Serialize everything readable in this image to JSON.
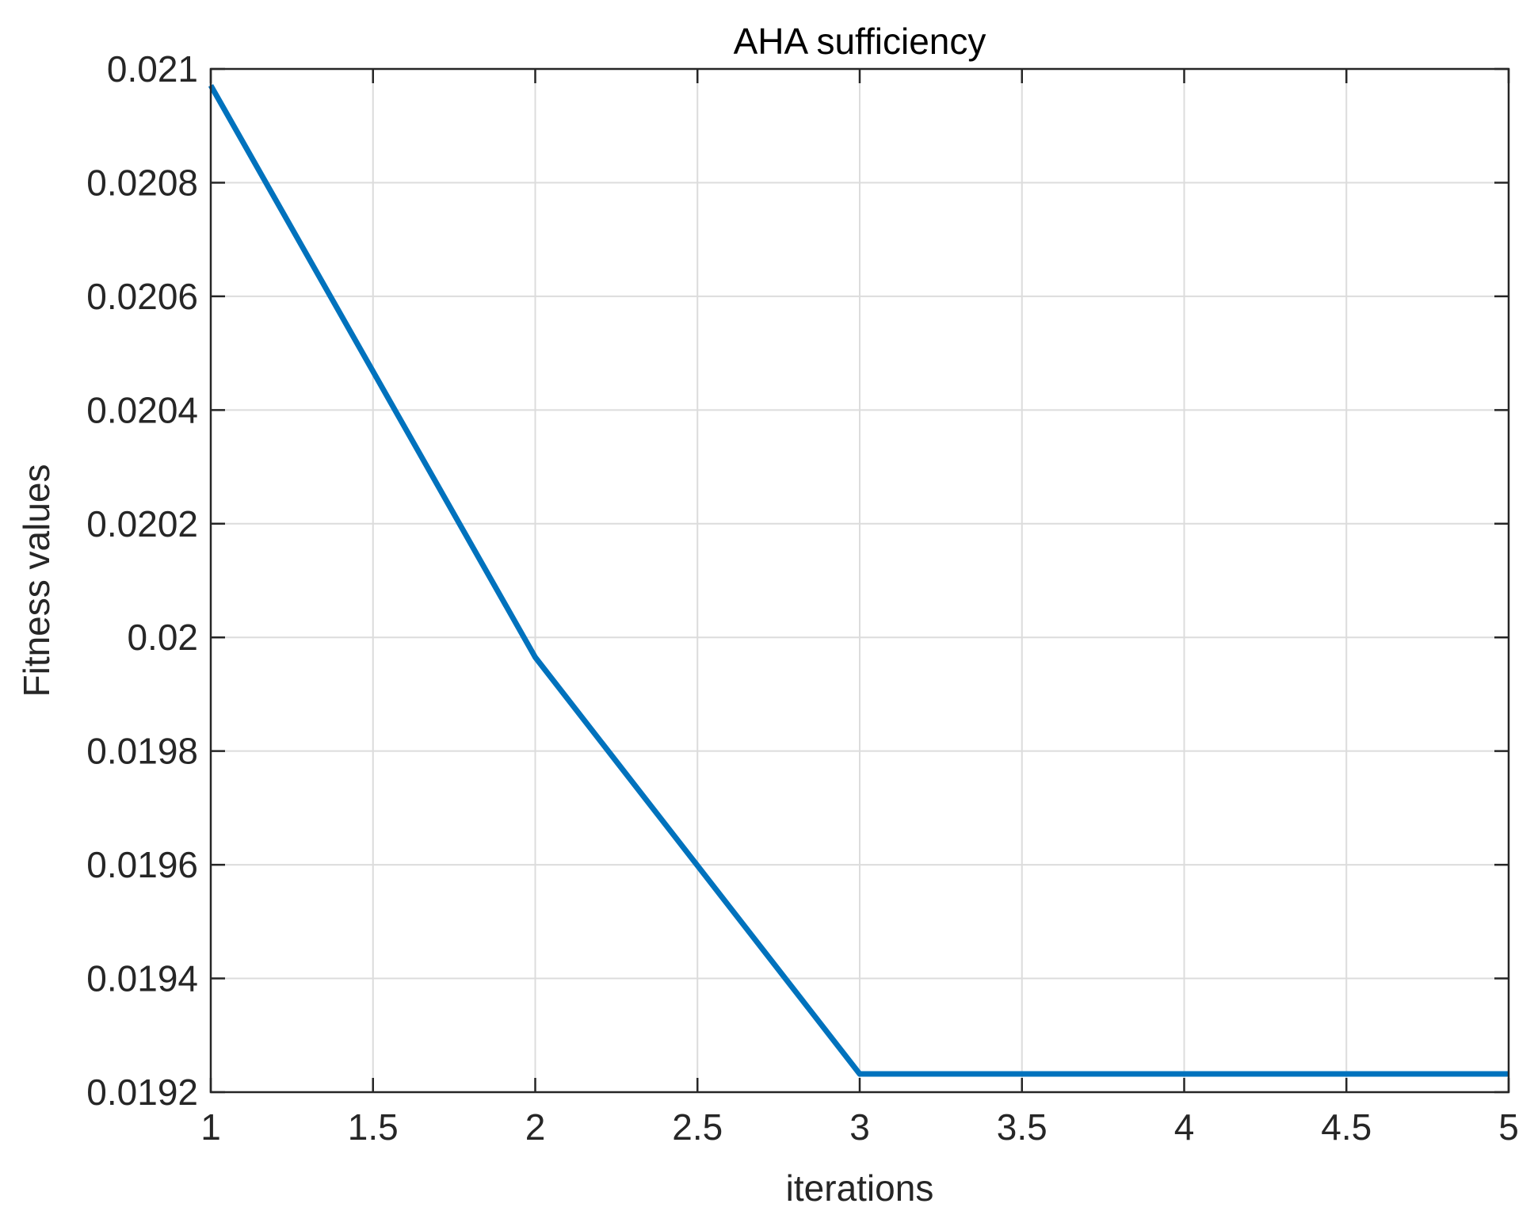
{
  "chart_data": {
    "type": "line",
    "title": "AHA sufficiency",
    "xlabel": "iterations",
    "ylabel": "Fitness values",
    "xlim": [
      1,
      5
    ],
    "ylim": [
      0.0192,
      0.021
    ],
    "xticks": [
      1,
      1.5,
      2,
      2.5,
      3,
      3.5,
      4,
      4.5,
      5
    ],
    "xtick_labels": [
      "1",
      "1.5",
      "2",
      "2.5",
      "3",
      "3.5",
      "4",
      "4.5",
      "5"
    ],
    "yticks": [
      0.0192,
      0.0194,
      0.0196,
      0.0198,
      0.02,
      0.0202,
      0.0204,
      0.0206,
      0.0208,
      0.021
    ],
    "ytick_labels": [
      "0.0192",
      "0.0194",
      "0.0196",
      "0.0198",
      "0.02",
      "0.0202",
      "0.0204",
      "0.0206",
      "0.0208",
      "0.021"
    ],
    "grid": true,
    "series": [
      {
        "x": [
          1,
          2,
          3,
          4,
          5
        ],
        "values": [
          0.020971,
          0.019965,
          0.019232,
          0.019232,
          0.019232
        ],
        "color": "#0072BD"
      }
    ],
    "colors": {
      "axes": "#262626",
      "grid": "#dcdcdc",
      "background": "#ffffff"
    }
  }
}
